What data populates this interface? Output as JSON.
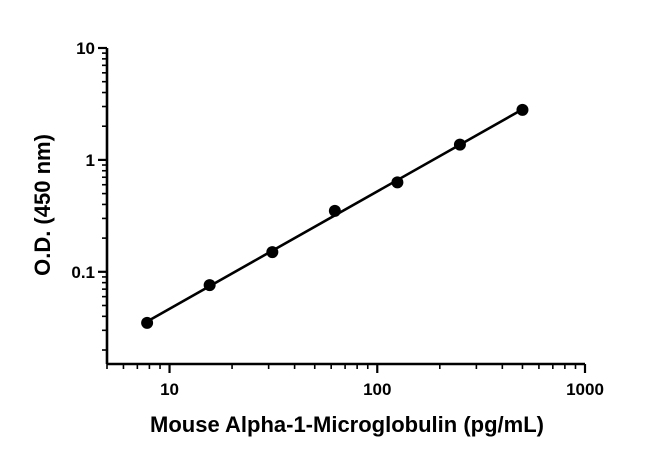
{
  "chart_data": {
    "type": "scatter",
    "xlabel": "Mouse Alpha-1-Microglobulin (pg/mL)",
    "ylabel": "O.D. (450 nm)",
    "xscale": "log",
    "yscale": "log",
    "xlim": [
      5,
      1000
    ],
    "ylim": [
      0.015,
      10
    ],
    "xticks": [
      10,
      100,
      1000
    ],
    "xtick_labels": [
      "10",
      "100",
      "1000"
    ],
    "yticks": [
      0.1,
      1,
      10
    ],
    "ytick_labels": [
      "0.1",
      "1",
      "10"
    ],
    "grid": false,
    "fit_line": true,
    "x": [
      7.8,
      15.6,
      31.25,
      62.5,
      125,
      250,
      500
    ],
    "y": [
      0.035,
      0.076,
      0.15,
      0.35,
      0.63,
      1.37,
      2.8
    ]
  }
}
